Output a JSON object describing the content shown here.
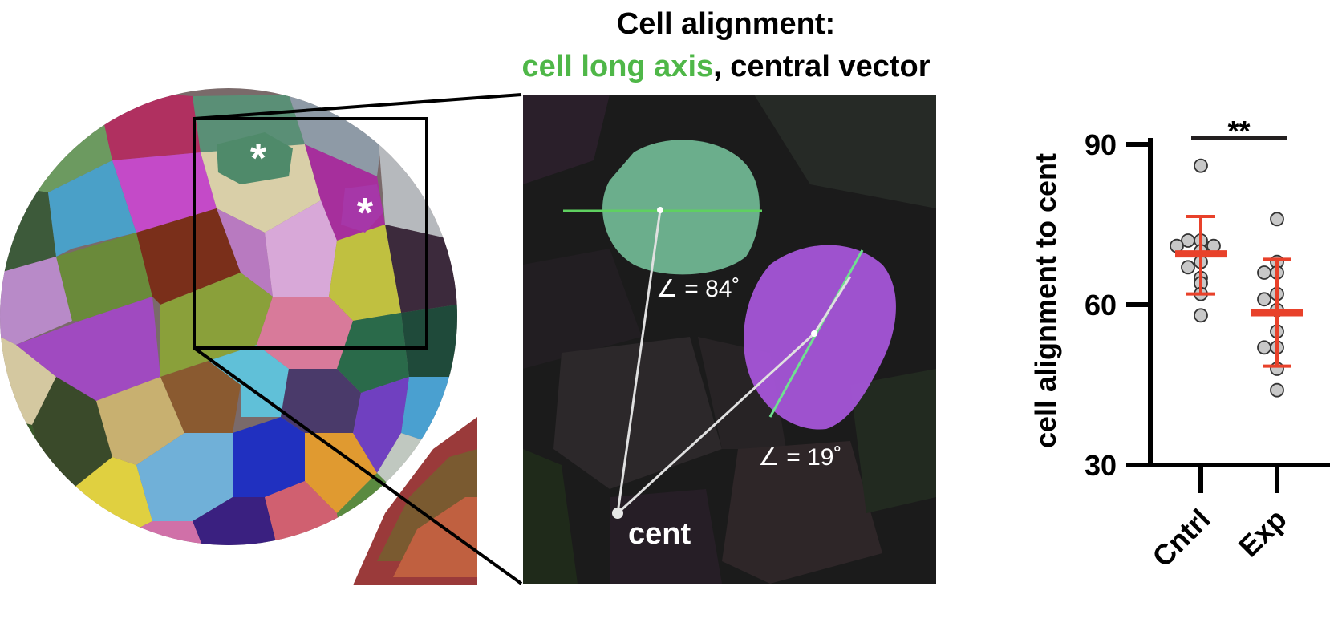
{
  "figure": {
    "title_line1": "Cell alignment:",
    "title_green": "cell long axis",
    "title_sep": ",",
    "title_black": " central vector",
    "colors": {
      "long_axis": "#4fb748",
      "central_vector": "#000000",
      "mean_sd": "#e8412a",
      "points": "#c8c8c8"
    }
  },
  "panel_left": {
    "markers": [
      "*",
      "*"
    ]
  },
  "panel_zoom": {
    "angle_a": "∠ = 84˚",
    "angle_b": "∠ = 19˚",
    "cent_label": "cent"
  },
  "chart_data": {
    "type": "scatter",
    "ylabel": "cell alignment to cent",
    "ylim": [
      30,
      90
    ],
    "yticks": [
      30,
      60,
      90
    ],
    "categories": [
      "Cntrl",
      "Exp"
    ],
    "series": [
      {
        "values": [
          86,
          72,
          72,
          71,
          71,
          70,
          68,
          67,
          65,
          64,
          62,
          58
        ],
        "mean": 69.5,
        "sd_lower": 62,
        "sd_upper": 76.5
      },
      {
        "values": [
          76,
          68,
          66,
          66,
          62,
          61,
          59,
          55,
          52,
          52,
          48,
          44
        ],
        "mean": 58.5,
        "sd_lower": 48.5,
        "sd_upper": 68.5
      }
    ],
    "annotations": [
      {
        "text": "**",
        "between": [
          "Cntrl",
          "Exp"
        ]
      }
    ],
    "grid": false
  }
}
